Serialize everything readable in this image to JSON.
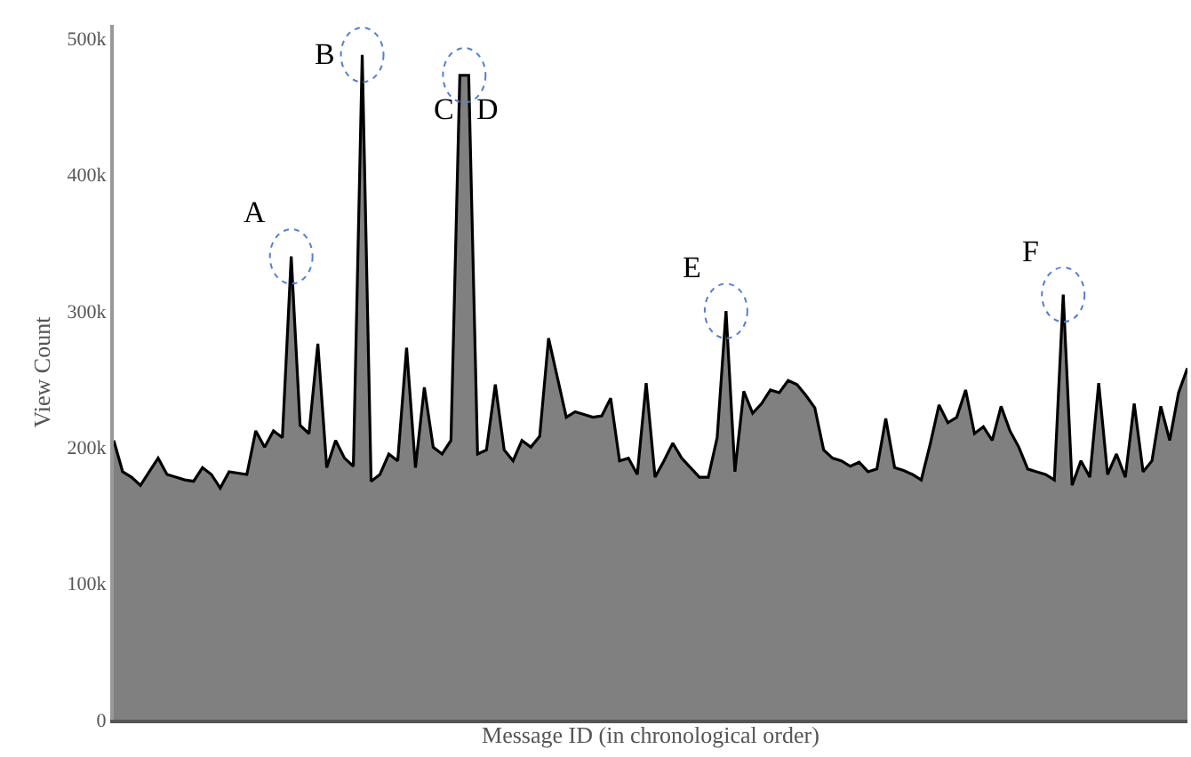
{
  "chart_data": {
    "type": "area",
    "xlabel": "Message ID (in chronological order)",
    "ylabel": "View Count",
    "categories": [
      null,
      null,
      null,
      null,
      null,
      null,
      null,
      null,
      null,
      null,
      null,
      null,
      null,
      null,
      null,
      null,
      null,
      null,
      null,
      null,
      null,
      null,
      null,
      null,
      null,
      null,
      null,
      null,
      null,
      null,
      null,
      null,
      null,
      null,
      null,
      null,
      null,
      null,
      null,
      null,
      null,
      null,
      null,
      null,
      null,
      null,
      null,
      null,
      null,
      null,
      null,
      null,
      null,
      null,
      null,
      null,
      null,
      null,
      null,
      null,
      null,
      null,
      null,
      null,
      null,
      null,
      null,
      null,
      null,
      null,
      null,
      null,
      null,
      null,
      null,
      null,
      null,
      null,
      null,
      null,
      null,
      null,
      null,
      null,
      null,
      null,
      null,
      null,
      null,
      null,
      null,
      null,
      null,
      null,
      null,
      null,
      null,
      null,
      null,
      null,
      null,
      null,
      null,
      null,
      null,
      null,
      null,
      null,
      null,
      null,
      null,
      null,
      null,
      null,
      null,
      null,
      null,
      null,
      null,
      null,
      null,
      null
    ],
    "series": [
      {
        "color": "#808080",
        "values": [
          205000,
          182000,
          178000,
          172000,
          182000,
          192000,
          180000,
          178000,
          176000,
          175000,
          185000,
          180000,
          170000,
          182000,
          181000,
          180000,
          212000,
          200000,
          212000,
          207000,
          340000,
          216000,
          210000,
          276000,
          185000,
          205000,
          192000,
          186000,
          488000,
          175000,
          180000,
          195000,
          190000,
          273000,
          185000,
          244000,
          200000,
          195000,
          205000,
          473000,
          473000,
          195000,
          198000,
          246000,
          198000,
          190000,
          205000,
          200000,
          208000,
          280000,
          251000,
          222000,
          226000,
          224000,
          222000,
          223000,
          236000,
          190000,
          192000,
          180000,
          247000,
          178000,
          190000,
          203000,
          192000,
          185000,
          178000,
          178000,
          207000,
          300000,
          182000,
          241000,
          225000,
          232000,
          242000,
          240000,
          249000,
          246000,
          238000,
          229000,
          198000,
          192000,
          190000,
          186000,
          189000,
          182000,
          184000,
          221000,
          185000,
          183000,
          180000,
          176000,
          202000,
          231000,
          218000,
          222000,
          242000,
          210000,
          215000,
          205000,
          230000,
          212000,
          200000,
          184000,
          182000,
          180000,
          176000,
          312000,
          172000,
          190000,
          178000,
          247000,
          180000,
          195000,
          178000,
          232000,
          182000,
          190000,
          230000,
          205000,
          240000,
          258000
        ]
      }
    ],
    "ylim": [
      0,
      510000
    ],
    "yticks": [
      {
        "value": 0,
        "label": "0"
      },
      {
        "value": 100000,
        "label": "100k"
      },
      {
        "value": 200000,
        "label": "200k"
      },
      {
        "value": 300000,
        "label": "300k"
      },
      {
        "value": 400000,
        "label": "400k"
      },
      {
        "value": 500000,
        "label": "500k"
      }
    ],
    "tick_labels": "y",
    "annotations": [
      "A",
      "B",
      "C",
      "D",
      "E",
      "F"
    ]
  }
}
